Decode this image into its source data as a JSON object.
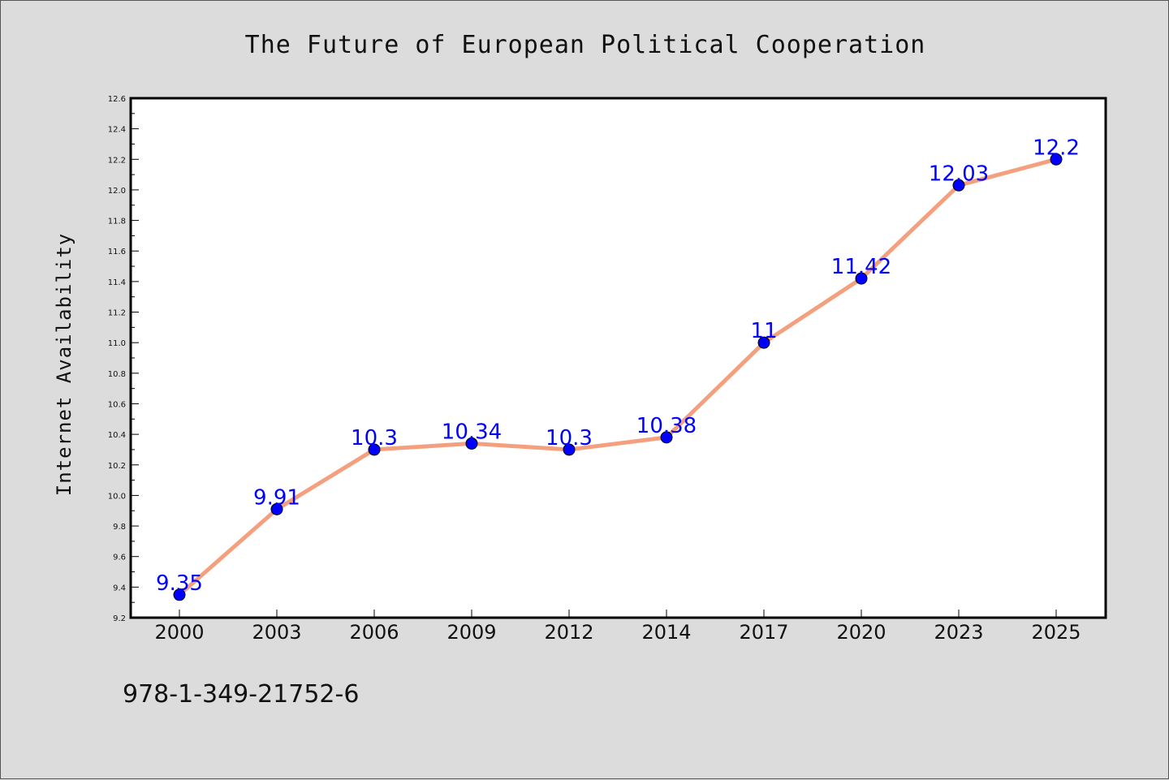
{
  "chart_data": {
    "type": "line",
    "title": "The Future of European Political Cooperation",
    "xlabel": "",
    "ylabel": "Internet Availability",
    "categories": [
      "2000",
      "2003",
      "2006",
      "2009",
      "2012",
      "2014",
      "2017",
      "2020",
      "2023",
      "2025"
    ],
    "series": [
      {
        "values": [
          9.35,
          9.91,
          10.3,
          10.34,
          10.3,
          10.38,
          11,
          11.42,
          12.03,
          12.2
        ],
        "labels": [
          "9.35",
          "9.91",
          "10.3",
          "10.34",
          "10.3",
          "10.38",
          "11",
          "11.42",
          "12.03",
          "12.2"
        ],
        "line_color": "#f4a07e",
        "marker_color": "#0000ff"
      }
    ],
    "ylim": [
      9.2,
      12.6
    ],
    "yticks": [
      "9.2",
      "9.4",
      "9.6",
      "9.8",
      "10.0",
      "10.2",
      "10.4",
      "10.6",
      "10.8",
      "11.0",
      "11.2",
      "11.4",
      "11.6",
      "11.8",
      "12.0",
      "12.2",
      "12.4",
      "12.6"
    ],
    "grid": false,
    "legend": "none"
  },
  "footer": {
    "isbn": "978-1-349-21752-6"
  },
  "colors": {
    "background": "#dcdcdc",
    "plot_background": "#ffffff",
    "line": "#f4a07e",
    "marker": "#0000ff",
    "data_label": "#0000ff"
  }
}
